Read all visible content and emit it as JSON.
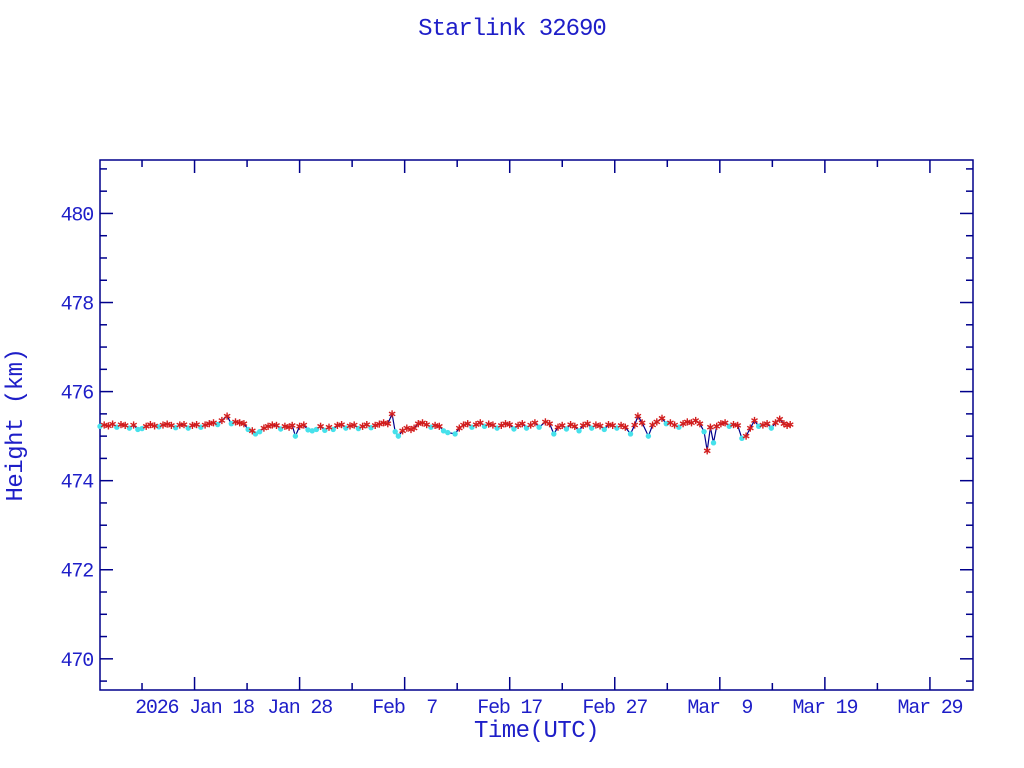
{
  "title": "Starlink 32690",
  "colors": {
    "background": "#ffffff",
    "label_text": "#1e1ec8",
    "frame": "#00008b",
    "line": "#00008b",
    "marker_red": "#d21e1e",
    "marker_cyan": "#46e1eb"
  },
  "chart_data": {
    "type": "line",
    "title": "Starlink 32690",
    "xlabel": "Time(UTC)",
    "ylabel": "Height (km)",
    "legend": "none",
    "grid": false,
    "ylim": [
      469.3,
      481.2
    ],
    "xlim_days": [
      0,
      83.1
    ],
    "x_axis": {
      "unit_note": "day 0 = plot left edge (approx 2026 Jan 9)",
      "major_ticks": [
        {
          "day": 9,
          "label": "2026 Jan 18"
        },
        {
          "day": 19,
          "label": "Jan 28"
        },
        {
          "day": 29,
          "label": "Feb  7"
        },
        {
          "day": 39,
          "label": "Feb 17"
        },
        {
          "day": 49,
          "label": "Feb 27"
        },
        {
          "day": 59,
          "label": "Mar  9"
        },
        {
          "day": 69,
          "label": "Mar 19"
        },
        {
          "day": 79,
          "label": "Mar 29"
        }
      ],
      "minor_tick_days": [
        4,
        14,
        24,
        34,
        44,
        54,
        64,
        74
      ]
    },
    "y_axis": {
      "major_ticks": [
        470,
        472,
        474,
        476,
        478,
        480
      ],
      "minor_step": 0.5
    },
    "markers": {
      "r": {
        "shape": "asterisk",
        "color": "#d21e1e"
      },
      "c": {
        "shape": "dot",
        "color": "#46e1eb"
      }
    },
    "points": [
      [
        0.0,
        475.22,
        "c"
      ],
      [
        0.4,
        475.25,
        "r"
      ],
      [
        0.8,
        475.23,
        "r"
      ],
      [
        1.2,
        475.27,
        "r"
      ],
      [
        1.6,
        475.2,
        "c"
      ],
      [
        2.0,
        475.26,
        "r"
      ],
      [
        2.4,
        475.24,
        "r"
      ],
      [
        2.8,
        475.18,
        "c"
      ],
      [
        3.2,
        475.25,
        "r"
      ],
      [
        3.6,
        475.15,
        "c"
      ],
      [
        4.0,
        475.17,
        "c"
      ],
      [
        4.4,
        475.22,
        "r"
      ],
      [
        4.8,
        475.26,
        "r"
      ],
      [
        5.2,
        475.23,
        "r"
      ],
      [
        5.6,
        475.21,
        "c"
      ],
      [
        6.0,
        475.25,
        "r"
      ],
      [
        6.4,
        475.27,
        "r"
      ],
      [
        6.8,
        475.24,
        "r"
      ],
      [
        7.2,
        475.19,
        "c"
      ],
      [
        7.6,
        475.25,
        "r"
      ],
      [
        8.0,
        475.26,
        "r"
      ],
      [
        8.4,
        475.18,
        "c"
      ],
      [
        8.8,
        475.24,
        "r"
      ],
      [
        9.2,
        475.26,
        "r"
      ],
      [
        9.6,
        475.2,
        "c"
      ],
      [
        10.0,
        475.25,
        "r"
      ],
      [
        10.4,
        475.28,
        "r"
      ],
      [
        10.8,
        475.3,
        "r"
      ],
      [
        11.2,
        475.26,
        "c"
      ],
      [
        11.6,
        475.35,
        "r"
      ],
      [
        12.1,
        475.45,
        "r"
      ],
      [
        12.5,
        475.28,
        "c"
      ],
      [
        12.9,
        475.32,
        "r"
      ],
      [
        13.3,
        475.3,
        "r"
      ],
      [
        13.7,
        475.28,
        "r"
      ],
      [
        14.1,
        475.15,
        "c"
      ],
      [
        14.5,
        475.12,
        "r"
      ],
      [
        14.8,
        475.05,
        "c"
      ],
      [
        15.2,
        475.1,
        "c"
      ],
      [
        15.6,
        475.18,
        "r"
      ],
      [
        16.0,
        475.22,
        "r"
      ],
      [
        16.4,
        475.25,
        "r"
      ],
      [
        16.8,
        475.24,
        "r"
      ],
      [
        17.2,
        475.16,
        "c"
      ],
      [
        17.6,
        475.22,
        "r"
      ],
      [
        18.0,
        475.2,
        "r"
      ],
      [
        18.3,
        475.24,
        "r"
      ],
      [
        18.6,
        475.0,
        "c"
      ],
      [
        19.0,
        475.22,
        "r"
      ],
      [
        19.4,
        475.25,
        "r"
      ],
      [
        19.8,
        475.14,
        "c"
      ],
      [
        20.2,
        475.12,
        "c"
      ],
      [
        20.6,
        475.15,
        "c"
      ],
      [
        21.0,
        475.22,
        "r"
      ],
      [
        21.4,
        475.13,
        "c"
      ],
      [
        21.8,
        475.2,
        "r"
      ],
      [
        22.2,
        475.15,
        "c"
      ],
      [
        22.6,
        475.24,
        "r"
      ],
      [
        23.0,
        475.26,
        "r"
      ],
      [
        23.4,
        475.18,
        "c"
      ],
      [
        23.8,
        475.23,
        "r"
      ],
      [
        24.2,
        475.25,
        "r"
      ],
      [
        24.6,
        475.17,
        "c"
      ],
      [
        25.0,
        475.22,
        "r"
      ],
      [
        25.4,
        475.26,
        "r"
      ],
      [
        25.8,
        475.19,
        "c"
      ],
      [
        26.2,
        475.24,
        "r"
      ],
      [
        26.6,
        475.27,
        "r"
      ],
      [
        27.0,
        475.3,
        "r"
      ],
      [
        27.4,
        475.28,
        "r"
      ],
      [
        27.8,
        475.5,
        "r"
      ],
      [
        28.1,
        475.1,
        "c"
      ],
      [
        28.4,
        475.0,
        "c"
      ],
      [
        28.8,
        475.12,
        "r"
      ],
      [
        29.2,
        475.18,
        "r"
      ],
      [
        29.6,
        475.15,
        "r"
      ],
      [
        29.9,
        475.18,
        "r"
      ],
      [
        30.3,
        475.28,
        "r"
      ],
      [
        30.7,
        475.3,
        "r"
      ],
      [
        31.1,
        475.26,
        "r"
      ],
      [
        31.5,
        475.2,
        "c"
      ],
      [
        31.9,
        475.24,
        "r"
      ],
      [
        32.3,
        475.22,
        "r"
      ],
      [
        32.7,
        475.12,
        "c"
      ],
      [
        33.1,
        475.08,
        "c"
      ],
      [
        33.8,
        475.05,
        "c"
      ],
      [
        34.2,
        475.18,
        "r"
      ],
      [
        34.6,
        475.25,
        "r"
      ],
      [
        35.0,
        475.28,
        "r"
      ],
      [
        35.4,
        475.2,
        "c"
      ],
      [
        35.8,
        475.26,
        "r"
      ],
      [
        36.2,
        475.3,
        "r"
      ],
      [
        36.6,
        475.22,
        "c"
      ],
      [
        37.0,
        475.27,
        "r"
      ],
      [
        37.4,
        475.25,
        "r"
      ],
      [
        37.8,
        475.18,
        "c"
      ],
      [
        38.2,
        475.24,
        "r"
      ],
      [
        38.6,
        475.28,
        "r"
      ],
      [
        39.0,
        475.26,
        "r"
      ],
      [
        39.4,
        475.16,
        "c"
      ],
      [
        39.8,
        475.24,
        "r"
      ],
      [
        40.2,
        475.28,
        "r"
      ],
      [
        40.6,
        475.18,
        "c"
      ],
      [
        41.0,
        475.25,
        "r"
      ],
      [
        41.4,
        475.3,
        "r"
      ],
      [
        41.8,
        475.2,
        "c"
      ],
      [
        42.4,
        475.32,
        "r"
      ],
      [
        42.8,
        475.28,
        "r"
      ],
      [
        43.2,
        475.05,
        "c"
      ],
      [
        43.6,
        475.2,
        "r"
      ],
      [
        44.0,
        475.24,
        "r"
      ],
      [
        44.4,
        475.16,
        "c"
      ],
      [
        44.8,
        475.26,
        "r"
      ],
      [
        45.2,
        475.22,
        "r"
      ],
      [
        45.6,
        475.12,
        "c"
      ],
      [
        46.0,
        475.24,
        "r"
      ],
      [
        46.4,
        475.28,
        "r"
      ],
      [
        46.8,
        475.18,
        "c"
      ],
      [
        47.2,
        475.25,
        "r"
      ],
      [
        47.6,
        475.23,
        "r"
      ],
      [
        48.0,
        475.15,
        "c"
      ],
      [
        48.4,
        475.26,
        "r"
      ],
      [
        48.8,
        475.24,
        "r"
      ],
      [
        49.2,
        475.18,
        "c"
      ],
      [
        49.6,
        475.24,
        "r"
      ],
      [
        50.0,
        475.2,
        "r"
      ],
      [
        50.5,
        475.05,
        "c"
      ],
      [
        50.9,
        475.25,
        "r"
      ],
      [
        51.2,
        475.45,
        "r"
      ],
      [
        51.6,
        475.3,
        "r"
      ],
      [
        52.2,
        475.0,
        "c"
      ],
      [
        52.6,
        475.25,
        "r"
      ],
      [
        53.0,
        475.32,
        "r"
      ],
      [
        53.5,
        475.4,
        "r"
      ],
      [
        53.9,
        475.28,
        "c"
      ],
      [
        54.3,
        475.3,
        "r"
      ],
      [
        54.7,
        475.25,
        "r"
      ],
      [
        55.1,
        475.2,
        "c"
      ],
      [
        55.5,
        475.28,
        "r"
      ],
      [
        55.9,
        475.32,
        "r"
      ],
      [
        56.3,
        475.3,
        "r"
      ],
      [
        56.7,
        475.35,
        "r"
      ],
      [
        57.1,
        475.28,
        "r"
      ],
      [
        57.5,
        475.1,
        "c"
      ],
      [
        57.8,
        474.67,
        "r"
      ],
      [
        58.1,
        475.2,
        "r"
      ],
      [
        58.4,
        474.85,
        "c"
      ],
      [
        58.7,
        475.22,
        "r"
      ],
      [
        59.1,
        475.28,
        "r"
      ],
      [
        59.5,
        475.3,
        "r"
      ],
      [
        59.9,
        475.22,
        "c"
      ],
      [
        60.3,
        475.26,
        "r"
      ],
      [
        60.7,
        475.24,
        "r"
      ],
      [
        61.1,
        474.95,
        "c"
      ],
      [
        61.5,
        475.0,
        "r"
      ],
      [
        61.9,
        475.18,
        "r"
      ],
      [
        62.3,
        475.35,
        "r"
      ],
      [
        62.7,
        475.22,
        "c"
      ],
      [
        63.1,
        475.25,
        "r"
      ],
      [
        63.5,
        475.28,
        "r"
      ],
      [
        63.9,
        475.18,
        "c"
      ],
      [
        64.3,
        475.3,
        "r"
      ],
      [
        64.7,
        475.38,
        "r"
      ],
      [
        65.1,
        475.28,
        "r"
      ],
      [
        65.4,
        475.24,
        "r"
      ],
      [
        65.7,
        475.26,
        "r"
      ]
    ]
  }
}
